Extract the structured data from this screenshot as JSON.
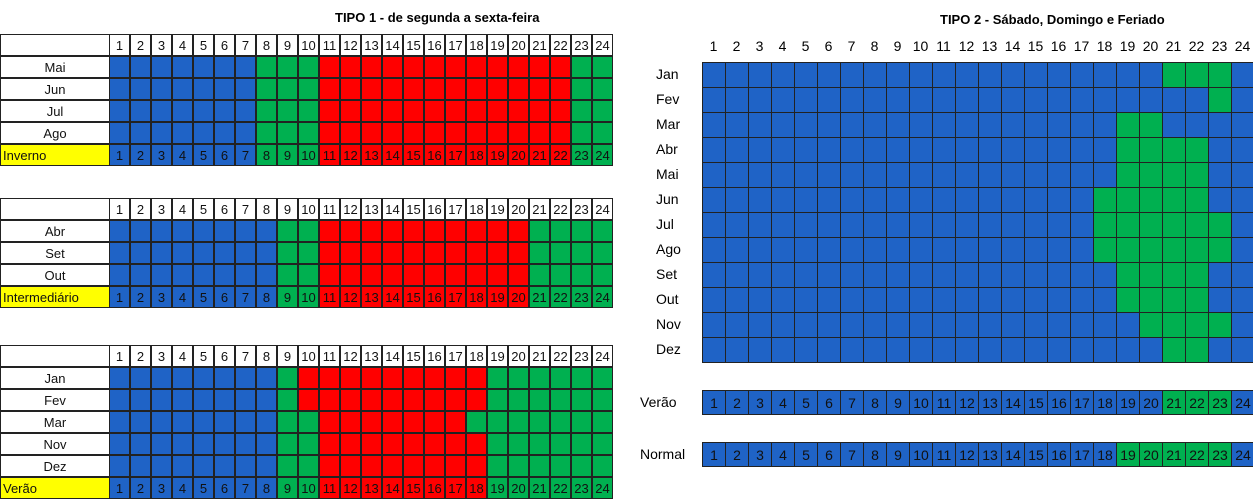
{
  "palette": {
    "B": "#1f63c6",
    "G": "#00b050",
    "R": "#ff0000",
    "label": "#ffff00"
  },
  "left": {
    "title": "TIPO 1 - de segunda a sexta-feira",
    "blocks": [
      {
        "hours": [
          1,
          2,
          3,
          4,
          5,
          6,
          7,
          8,
          9,
          10,
          11,
          12,
          13,
          14,
          15,
          16,
          17,
          18,
          19,
          20,
          21,
          22,
          23,
          24
        ],
        "rows": [
          {
            "label": "Mai",
            "cells": "BBBBBBBGGGRRRRRRRRRRRRGG"
          },
          {
            "label": "Jun",
            "cells": "BBBBBBBGGGRRRRRRRRRRRRGG"
          },
          {
            "label": "Jul",
            "cells": "BBBBBBBGGGRRRRRRRRRRRRGG"
          },
          {
            "label": "Ago",
            "cells": "BBBBBBBGGGRRRRRRRRRRRRGG"
          }
        ],
        "summary": {
          "label": "Inverno",
          "cells": "BBBBBBBGGGRRRRRRRRRRRRGG"
        }
      },
      {
        "hours": [
          1,
          2,
          3,
          4,
          5,
          6,
          7,
          8,
          9,
          10,
          11,
          12,
          13,
          14,
          15,
          16,
          17,
          18,
          19,
          20,
          21,
          22,
          23,
          24
        ],
        "rows": [
          {
            "label": "Abr",
            "cells": "BBBBBBBBGGRRRRRRRRRRGGGG"
          },
          {
            "label": "Set",
            "cells": "BBBBBBBBGGRRRRRRRRRRGGGG"
          },
          {
            "label": "Out",
            "cells": "BBBBBBBBGGRRRRRRRRRRGGGG"
          }
        ],
        "summary": {
          "label": "Intermediário",
          "cells": "BBBBBBBBGGRRRRRRRRRRGGGG"
        }
      },
      {
        "hours": [
          1,
          2,
          3,
          4,
          5,
          6,
          7,
          8,
          9,
          10,
          11,
          12,
          13,
          14,
          15,
          16,
          17,
          18,
          19,
          20,
          21,
          22,
          23,
          24
        ],
        "rows": [
          {
            "label": "Jan",
            "cells": "BBBBBBBBGRRRRRRRRRGGGGGG"
          },
          {
            "label": "Fev",
            "cells": "BBBBBBBBGRRRRRRRRRGGGGGG"
          },
          {
            "label": "Mar",
            "cells": "BBBBBBBBGGRRRRRRRGGGGGGG"
          },
          {
            "label": "Nov",
            "cells": "BBBBBBBBGGRRRRRRRRGGGGGG"
          },
          {
            "label": "Dez",
            "cells": "BBBBBBBBGGRRRRRRRRGGGGGG"
          }
        ],
        "summary": {
          "label": "Verão",
          "cells": "BBBBBBBBGGRRRRRRRRGGGGGG"
        }
      }
    ]
  },
  "right": {
    "title": "TIPO 2 - Sábado, Domingo e Feriado",
    "hours": [
      1,
      2,
      3,
      4,
      5,
      6,
      7,
      8,
      9,
      10,
      11,
      12,
      13,
      14,
      15,
      16,
      17,
      18,
      19,
      20,
      21,
      22,
      23,
      24
    ],
    "rows": [
      {
        "label": "Jan",
        "cells": "BBBBBBBBBBBBBBBBBBBBGGGB"
      },
      {
        "label": "Fev",
        "cells": "BBBBBBBBBBBBBBBBBBBBBBGB"
      },
      {
        "label": "Mar",
        "cells": "BBBBBBBBBBBBBBBBBBGGBBBB"
      },
      {
        "label": "Abr",
        "cells": "BBBBBBBBBBBBBBBBBBGGGGBB"
      },
      {
        "label": "Mai",
        "cells": "BBBBBBBBBBBBBBBBBBGGGGBB"
      },
      {
        "label": "Jun",
        "cells": "BBBBBBBBBBBBBBBBBGGGGGBB"
      },
      {
        "label": "Jul",
        "cells": "BBBBBBBBBBBBBBBBBGGGGGGB"
      },
      {
        "label": "Ago",
        "cells": "BBBBBBBBBBBBBBBBBGGGGGGB"
      },
      {
        "label": "Set",
        "cells": "BBBBBBBBBBBBBBBBBBGGGGBB"
      },
      {
        "label": "Out",
        "cells": "BBBBBBBBBBBBBBBBBBGGGGBB"
      },
      {
        "label": "Nov",
        "cells": "BBBBBBBBBBBBBBBBBBBGGGGB"
      },
      {
        "label": "Dez",
        "cells": "BBBBBBBBBBBBBBBBBBBBGGBB"
      }
    ],
    "summaries": [
      {
        "label": "Verão",
        "cells": "BBBBBBBBBBBBBBBBBBBBGGGB"
      },
      {
        "label": "Normal",
        "cells": "BBBBBBBBBBBBBBBBBBGGGGGB"
      }
    ]
  }
}
